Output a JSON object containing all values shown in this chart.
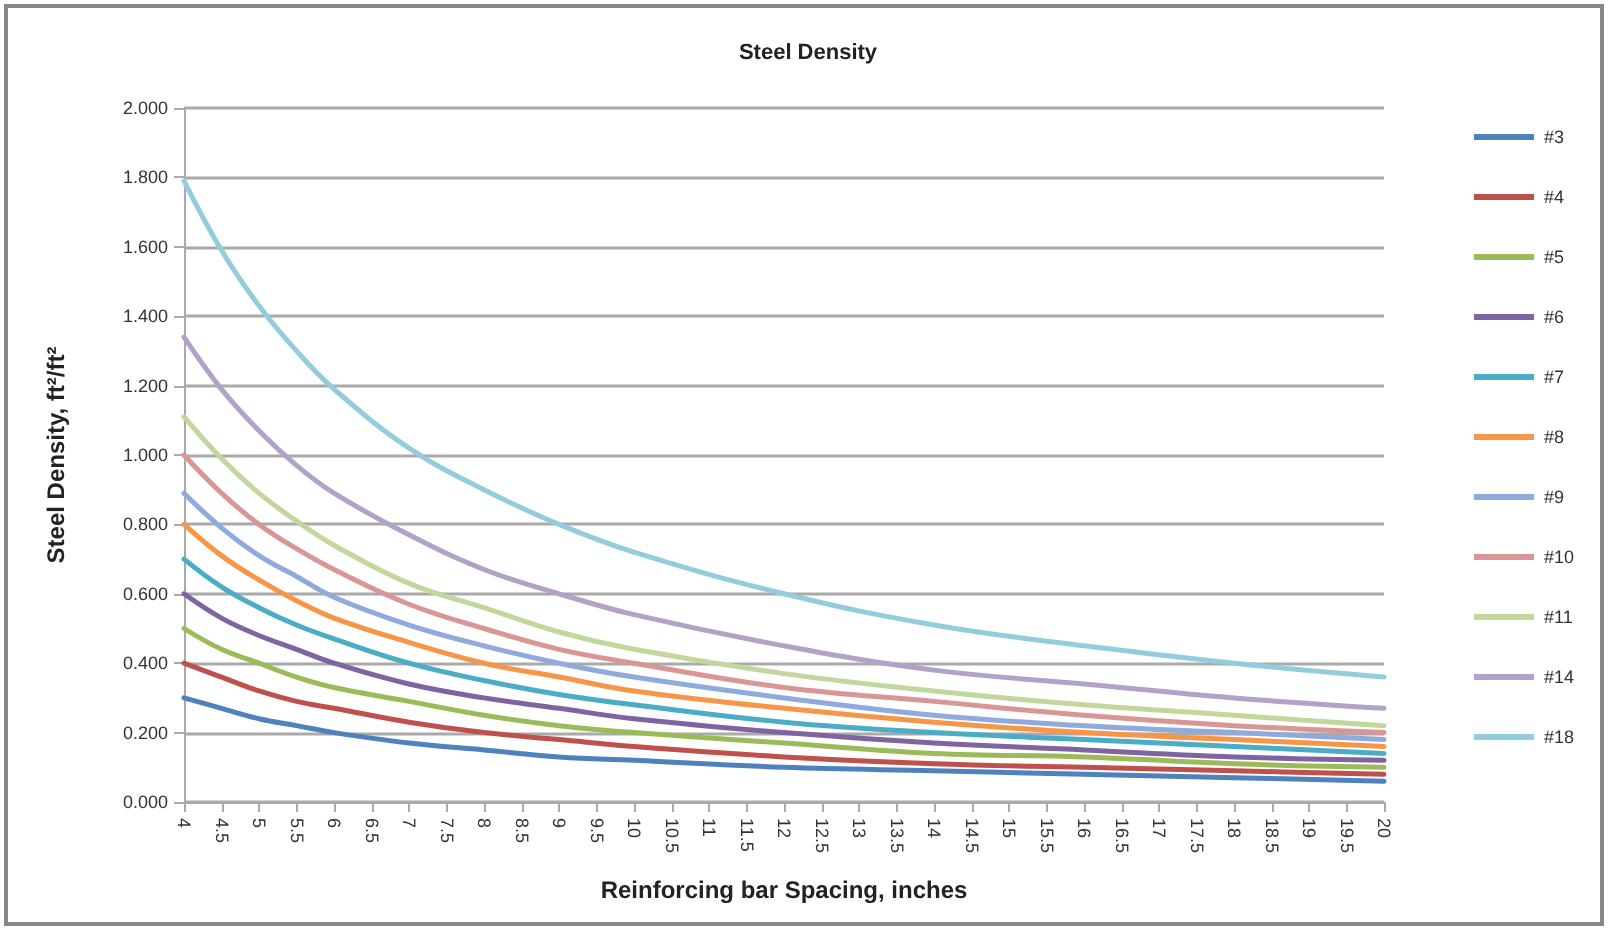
{
  "chart_data": {
    "type": "line",
    "title": "Steel Density",
    "xlabel": "Reinforcing bar Spacing, inches",
    "ylabel": "Steel Density, ft²/ft²",
    "x": [
      4,
      4.5,
      5,
      5.5,
      6,
      7,
      8,
      9,
      10,
      12,
      14,
      16,
      18,
      20
    ],
    "xlim": [
      4,
      20
    ],
    "xticks": [
      4,
      4.5,
      5,
      5.5,
      6,
      6.5,
      7,
      7.5,
      8,
      8.5,
      9,
      9.5,
      10,
      10.5,
      11,
      11.5,
      12,
      12.5,
      13,
      13.5,
      14,
      14.5,
      15,
      15.5,
      16,
      16.5,
      17,
      17.5,
      18,
      18.5,
      19,
      19.5,
      20
    ],
    "ylim": [
      0,
      2
    ],
    "yticks": [
      {
        "value": 0,
        "label": "0.000"
      },
      {
        "value": 0.2,
        "label": "0.200"
      },
      {
        "value": 0.4,
        "label": "0.400"
      },
      {
        "value": 0.6,
        "label": "0.600"
      },
      {
        "value": 0.8,
        "label": "0.800"
      },
      {
        "value": 1,
        "label": "1.000"
      },
      {
        "value": 1.2,
        "label": "1.200"
      },
      {
        "value": 1.4,
        "label": "1.400"
      },
      {
        "value": 1.6,
        "label": "1.600"
      },
      {
        "value": 1.8,
        "label": "1.800"
      },
      {
        "value": 2,
        "label": "2.000"
      }
    ],
    "grid": "y",
    "legend": "right",
    "marker": "none",
    "line_style": "solid",
    "series": [
      {
        "name": "#3",
        "color": "#4f81bd",
        "values": [
          0.3,
          0.27,
          0.24,
          0.22,
          0.2,
          0.17,
          0.15,
          0.13,
          0.12,
          0.1,
          0.09,
          0.08,
          0.07,
          0.06
        ]
      },
      {
        "name": "#4",
        "color": "#c0504d",
        "values": [
          0.4,
          0.36,
          0.32,
          0.29,
          0.27,
          0.23,
          0.2,
          0.18,
          0.16,
          0.13,
          0.11,
          0.1,
          0.09,
          0.08
        ]
      },
      {
        "name": "#5",
        "color": "#9bbb59",
        "values": [
          0.5,
          0.44,
          0.4,
          0.36,
          0.33,
          0.29,
          0.25,
          0.22,
          0.2,
          0.17,
          0.14,
          0.13,
          0.11,
          0.1
        ]
      },
      {
        "name": "#6",
        "color": "#8064a2",
        "values": [
          0.6,
          0.53,
          0.48,
          0.44,
          0.4,
          0.34,
          0.3,
          0.27,
          0.24,
          0.2,
          0.17,
          0.15,
          0.13,
          0.12
        ]
      },
      {
        "name": "#7",
        "color": "#4bacc6",
        "values": [
          0.7,
          0.62,
          0.56,
          0.51,
          0.47,
          0.4,
          0.35,
          0.31,
          0.28,
          0.23,
          0.2,
          0.18,
          0.16,
          0.14
        ]
      },
      {
        "name": "#8",
        "color": "#f79646",
        "values": [
          0.8,
          0.71,
          0.64,
          0.58,
          0.53,
          0.46,
          0.4,
          0.36,
          0.32,
          0.27,
          0.23,
          0.2,
          0.18,
          0.16
        ]
      },
      {
        "name": "#9",
        "color": "#8faadc",
        "values": [
          0.89,
          0.79,
          0.71,
          0.65,
          0.59,
          0.51,
          0.45,
          0.4,
          0.36,
          0.3,
          0.25,
          0.22,
          0.2,
          0.18
        ]
      },
      {
        "name": "#10",
        "color": "#d99694",
        "values": [
          1.0,
          0.89,
          0.8,
          0.73,
          0.67,
          0.57,
          0.5,
          0.44,
          0.4,
          0.33,
          0.29,
          0.25,
          0.22,
          0.2
        ]
      },
      {
        "name": "#11",
        "color": "#c3d69b",
        "values": [
          1.11,
          0.99,
          0.89,
          0.81,
          0.74,
          0.63,
          0.56,
          0.49,
          0.44,
          0.37,
          0.32,
          0.28,
          0.25,
          0.22
        ]
      },
      {
        "name": "#14",
        "color": "#b3a2c7",
        "values": [
          1.34,
          1.19,
          1.07,
          0.97,
          0.89,
          0.77,
          0.67,
          0.6,
          0.54,
          0.45,
          0.38,
          0.34,
          0.3,
          0.27
        ]
      },
      {
        "name": "#18",
        "color": "#93cddd",
        "values": [
          1.79,
          1.59,
          1.43,
          1.3,
          1.19,
          1.02,
          0.9,
          0.8,
          0.72,
          0.6,
          0.51,
          0.45,
          0.4,
          0.36
        ]
      }
    ]
  }
}
